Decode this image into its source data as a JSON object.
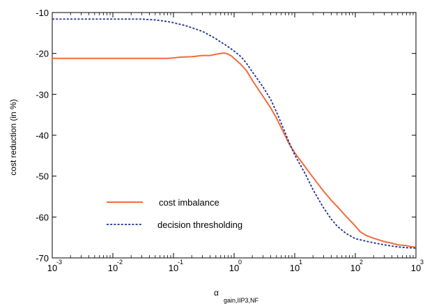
{
  "chart_data": {
    "type": "line",
    "title": "",
    "xlabel": {
      "symbol": "α",
      "subscript": "gain,IIP3,NF"
    },
    "ylabel": "cost reduction (in %)",
    "xscale": "log",
    "xlim": [
      0.001,
      1000
    ],
    "ylim": [
      -70,
      -10
    ],
    "x_ticks": [
      {
        "base": "10",
        "exp": "-3"
      },
      {
        "base": "10",
        "exp": "-2"
      },
      {
        "base": "10",
        "exp": "-1"
      },
      {
        "base": "10",
        "exp": "0"
      },
      {
        "base": "10",
        "exp": "1"
      },
      {
        "base": "10",
        "exp": "2"
      },
      {
        "base": "10",
        "exp": "3"
      }
    ],
    "y_ticks": [
      "-10",
      "-20",
      "-30",
      "-40",
      "-50",
      "-60",
      "-70"
    ],
    "grid": false,
    "legend_position": "bottom-left",
    "series": [
      {
        "name": "cost imbalance",
        "color": "#f26b3a",
        "dash": "solid",
        "points": [
          [
            0.001,
            -21.2
          ],
          [
            0.01,
            -21.2
          ],
          [
            0.05,
            -21.2
          ],
          [
            0.08,
            -21.2
          ],
          [
            0.1,
            -21.1
          ],
          [
            0.13,
            -20.9
          ],
          [
            0.2,
            -20.8
          ],
          [
            0.3,
            -20.5
          ],
          [
            0.4,
            -20.5
          ],
          [
            0.5,
            -20.2
          ],
          [
            0.6,
            -20.0
          ],
          [
            0.7,
            -19.9
          ],
          [
            0.8,
            -20.2
          ],
          [
            0.9,
            -20.6
          ],
          [
            1.0,
            -21.2
          ],
          [
            1.3,
            -22.7
          ],
          [
            1.6,
            -24.2
          ],
          [
            2.0,
            -26.6
          ],
          [
            3.0,
            -30.5
          ],
          [
            4.0,
            -33.3
          ],
          [
            5.0,
            -35.8
          ],
          [
            6.0,
            -38.2
          ],
          [
            7.0,
            -40.2
          ],
          [
            8.0,
            -42.0
          ],
          [
            10,
            -44.3
          ],
          [
            15,
            -47.8
          ],
          [
            20,
            -50.3
          ],
          [
            30,
            -53.7
          ],
          [
            40,
            -55.9
          ],
          [
            50,
            -57.4
          ],
          [
            70,
            -59.8
          ],
          [
            100,
            -62.2
          ],
          [
            120,
            -63.6
          ],
          [
            150,
            -64.5
          ],
          [
            200,
            -65.2
          ],
          [
            300,
            -66.0
          ],
          [
            400,
            -66.4
          ],
          [
            500,
            -66.8
          ],
          [
            600,
            -66.9
          ],
          [
            700,
            -67.0
          ],
          [
            800,
            -67.2
          ],
          [
            1000,
            -67.4
          ]
        ]
      },
      {
        "name": "decision thresholding",
        "color": "#1f2f8f",
        "dash": "dotted",
        "points": [
          [
            0.001,
            -11.6
          ],
          [
            0.01,
            -11.6
          ],
          [
            0.03,
            -11.6
          ],
          [
            0.05,
            -11.8
          ],
          [
            0.08,
            -12.2
          ],
          [
            0.1,
            -12.5
          ],
          [
            0.15,
            -13.1
          ],
          [
            0.2,
            -13.7
          ],
          [
            0.3,
            -14.6
          ],
          [
            0.4,
            -15.6
          ],
          [
            0.5,
            -16.4
          ],
          [
            0.6,
            -17.2
          ],
          [
            0.7,
            -17.8
          ],
          [
            0.8,
            -18.4
          ],
          [
            1.0,
            -19.4
          ],
          [
            1.3,
            -20.8
          ],
          [
            1.6,
            -22.4
          ],
          [
            2.0,
            -24.5
          ],
          [
            3.0,
            -28.2
          ],
          [
            4.0,
            -31.2
          ],
          [
            5.0,
            -34.3
          ],
          [
            6.0,
            -37.1
          ],
          [
            7.0,
            -39.5
          ],
          [
            8.0,
            -41.6
          ],
          [
            10,
            -44.8
          ],
          [
            15,
            -49.5
          ],
          [
            20,
            -53.3
          ],
          [
            30,
            -57.8
          ],
          [
            40,
            -60.5
          ],
          [
            50,
            -62.2
          ],
          [
            70,
            -64.0
          ],
          [
            100,
            -65.3
          ],
          [
            150,
            -65.9
          ],
          [
            200,
            -66.3
          ],
          [
            300,
            -66.8
          ],
          [
            400,
            -67.1
          ],
          [
            500,
            -67.3
          ],
          [
            700,
            -67.5
          ],
          [
            1000,
            -67.6
          ]
        ]
      }
    ]
  }
}
